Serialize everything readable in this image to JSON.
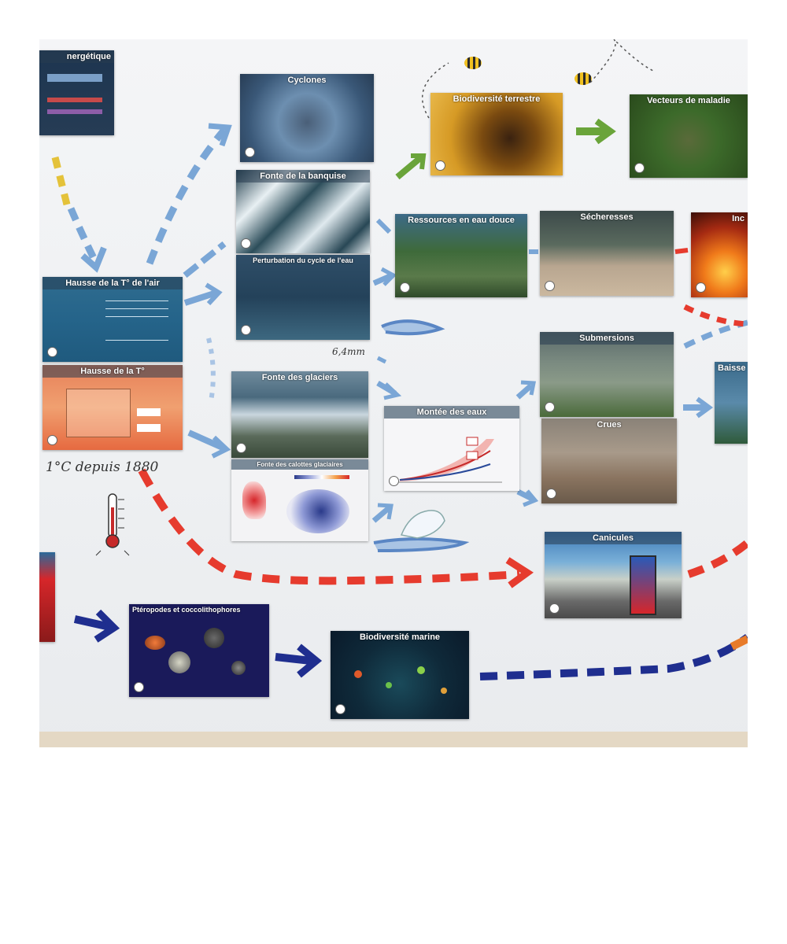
{
  "cards": {
    "energetique": "nergétique",
    "cyclones": "Cyclones",
    "fonte_banquise": "Fonte de la banquise",
    "perturbation_cycle": "Perturbation du cycle de l'eau",
    "biodiversite_terrestre": "Biodiversité terrestre",
    "vecteurs_maladie": "Vecteurs de maladie",
    "ressources_eau": "Ressources en eau douce",
    "secheresses": "Sécheresses",
    "incendies": "Inc",
    "hausse_t_air": "Hausse de la T° de l'air",
    "hausse_t": "Hausse de la T°",
    "fonte_glaciers": "Fonte des glaciers",
    "fonte_calottes": "Fonte des calottes glaciaires",
    "montee_eaux": "Montée des eaux",
    "submersions": "Submersions",
    "crues": "Crues",
    "baisse": "Baisse",
    "canicules": "Canicules",
    "pteropodes": "Ptéropodes et coccolithophores",
    "biodiversite_marine": "Biodiversité marine"
  },
  "handwriting": {
    "depuis_1880": "1°C depuis 1880",
    "six_mm": "6,4mm"
  },
  "colors": {
    "arrow_blue": "#7aa6d6",
    "arrow_red": "#e63b2e",
    "arrow_navy": "#1f2e8f",
    "arrow_green": "#6aa43a",
    "arrow_yellow": "#e4c23a",
    "arrow_orange": "#e87b2a"
  }
}
